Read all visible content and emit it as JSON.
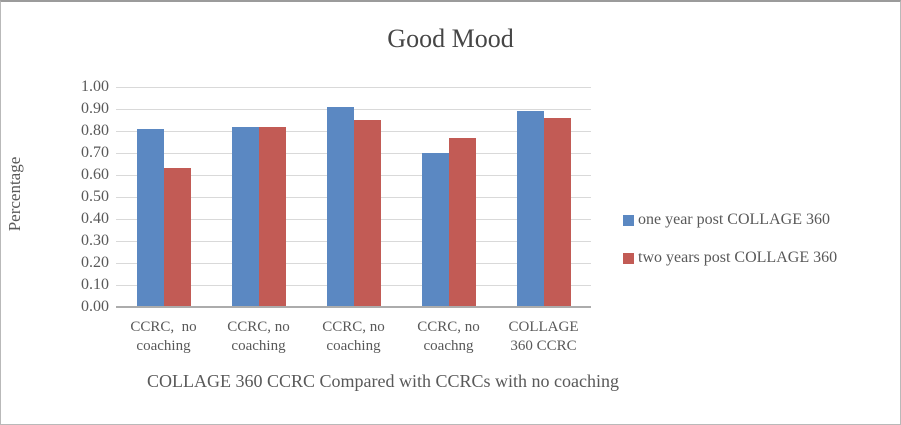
{
  "chart_data": {
    "type": "bar",
    "title": "Good Mood",
    "ylabel": "Percentage",
    "xlabel": "COLLAGE 360 CCRC Compared with CCRCs with no coaching",
    "categories": [
      "CCRC,  no\ncoaching",
      "CCRC, no\ncoaching",
      "CCRC, no\ncoaching",
      "CCRC, no\ncoachng",
      "COLLAGE\n360 CCRC"
    ],
    "series": [
      {
        "name": "one year post COLLAGE 360",
        "color": "#5b88c2",
        "values": [
          0.81,
          0.82,
          0.91,
          0.7,
          0.89
        ]
      },
      {
        "name": "two years post COLLAGE 360",
        "color": "#c25b55",
        "values": [
          0.63,
          0.82,
          0.85,
          0.77,
          0.86
        ]
      }
    ],
    "ylim": [
      0,
      1.0
    ],
    "ytick_step": 0.1,
    "yticks": [
      "1.00",
      "0.90",
      "0.80",
      "0.70",
      "0.60",
      "0.50",
      "0.40",
      "0.30",
      "0.20",
      "0.10",
      "0.00"
    ],
    "grid": true,
    "legend_position": "right",
    "colors": {
      "text": "#595959",
      "title_text": "#464646",
      "gridline": "#d9d9d9",
      "axis_line": "#acacac"
    }
  }
}
